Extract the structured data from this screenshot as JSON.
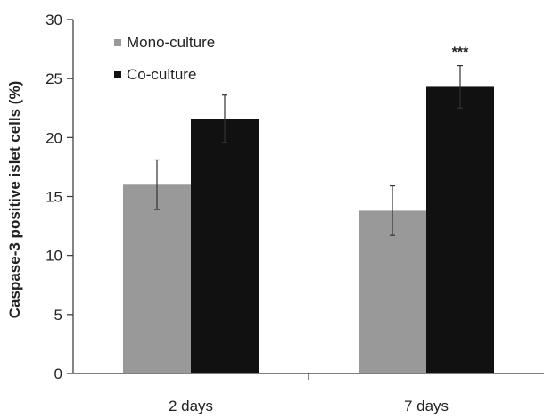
{
  "chart_data": {
    "type": "bar",
    "title": "",
    "xlabel": "",
    "ylabel": "Caspase-3 positive islet cells (%)",
    "categories": [
      "2 days",
      "7 days"
    ],
    "ylim": [
      0,
      30
    ],
    "yticks": [
      0,
      5,
      10,
      15,
      20,
      25,
      30
    ],
    "grid": false,
    "legend_position": "top-left",
    "series": [
      {
        "name": "Mono-culture",
        "color": "#999999",
        "values": [
          16.0,
          13.8
        ],
        "errors": [
          2.1,
          2.1
        ]
      },
      {
        "name": "Co-culture",
        "color": "#111111",
        "values": [
          21.6,
          24.3
        ],
        "errors": [
          2.0,
          1.8
        ]
      }
    ],
    "annotations": [
      {
        "category": "7 days",
        "series": "Co-culture",
        "text": "***"
      }
    ]
  }
}
